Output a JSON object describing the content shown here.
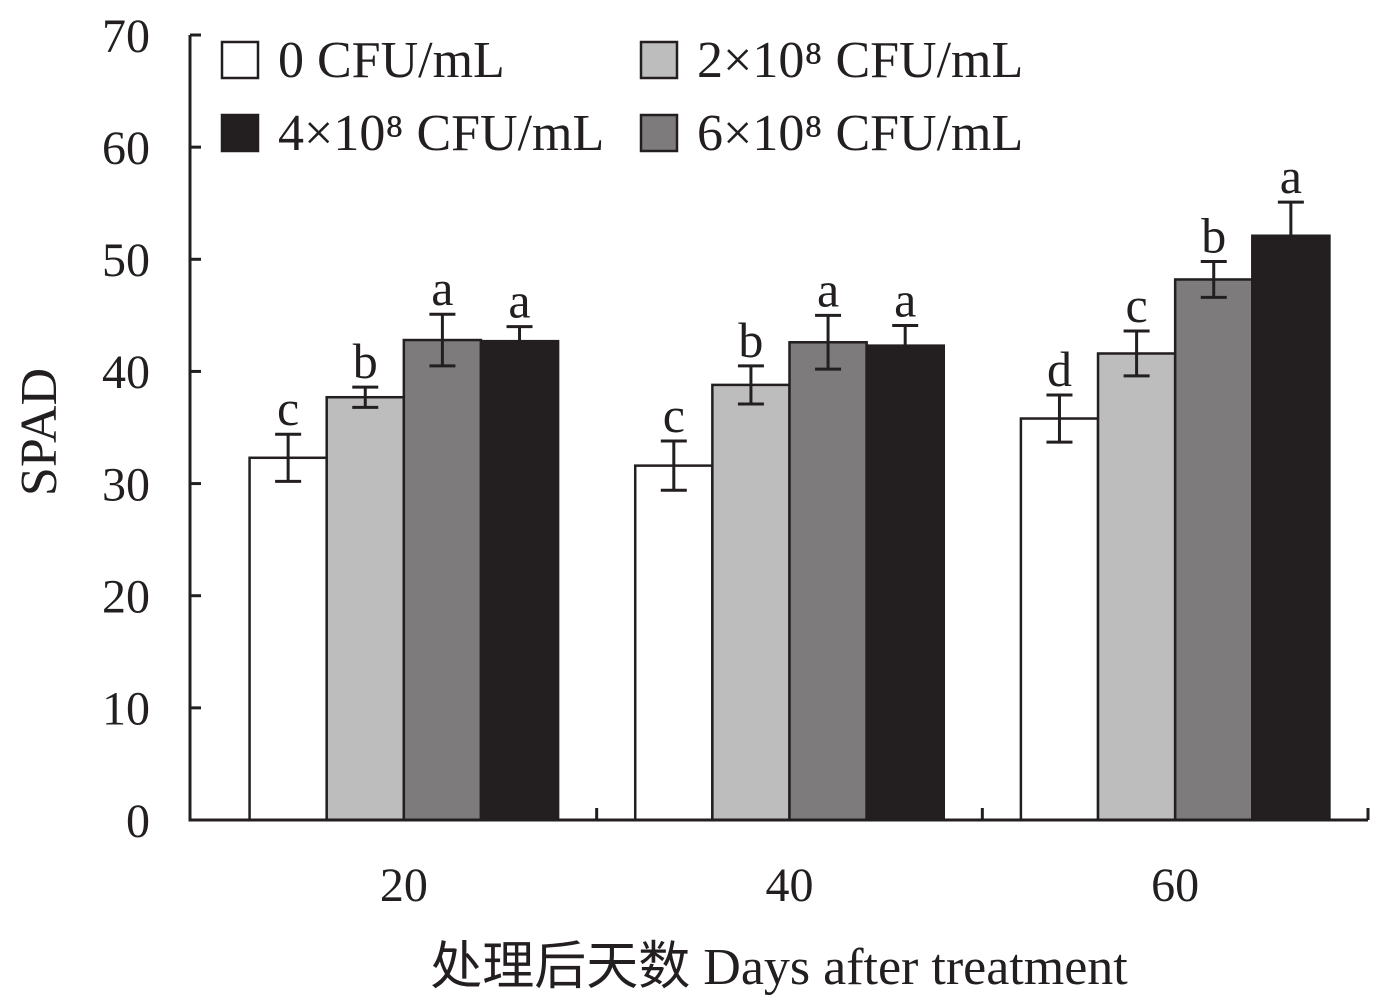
{
  "chart_data": {
    "type": "bar",
    "categories": [
      "20",
      "40",
      "60"
    ],
    "xlabel": "处理后天数 Days after treatment",
    "ylabel": "SPAD",
    "ylim": [
      0,
      70
    ],
    "yticks": [
      0,
      10,
      20,
      30,
      40,
      50,
      60,
      70
    ],
    "grid": false,
    "legend_placement": "top-left",
    "series": [
      {
        "name": "0 CFU/mL",
        "color": "#ffffff",
        "values": [
          32.3,
          31.6,
          35.8
        ],
        "errors": [
          2.1,
          2.2,
          2.1
        ],
        "letters": [
          "c",
          "c",
          "d"
        ]
      },
      {
        "name": "2×10⁸ CFU/mL",
        "color": "#bdbdbd",
        "values": [
          37.7,
          38.8,
          41.6
        ],
        "errors": [
          0.9,
          1.7,
          2.0
        ],
        "letters": [
          "b",
          "b",
          "c"
        ]
      },
      {
        "name": "6×10⁸ CFU/mL",
        "color": "#7d7b7c",
        "values": [
          42.8,
          42.6,
          48.2
        ],
        "errors": [
          2.3,
          2.4,
          1.6
        ],
        "letters": [
          "a",
          "a",
          "b"
        ]
      },
      {
        "name": "4×10⁸ CFU/mL",
        "color": "#231f20",
        "values": [
          42.7,
          42.3,
          52.1
        ],
        "errors": [
          1.3,
          1.8,
          3.0
        ],
        "letters": [
          "a",
          "a",
          "a"
        ]
      }
    ]
  }
}
